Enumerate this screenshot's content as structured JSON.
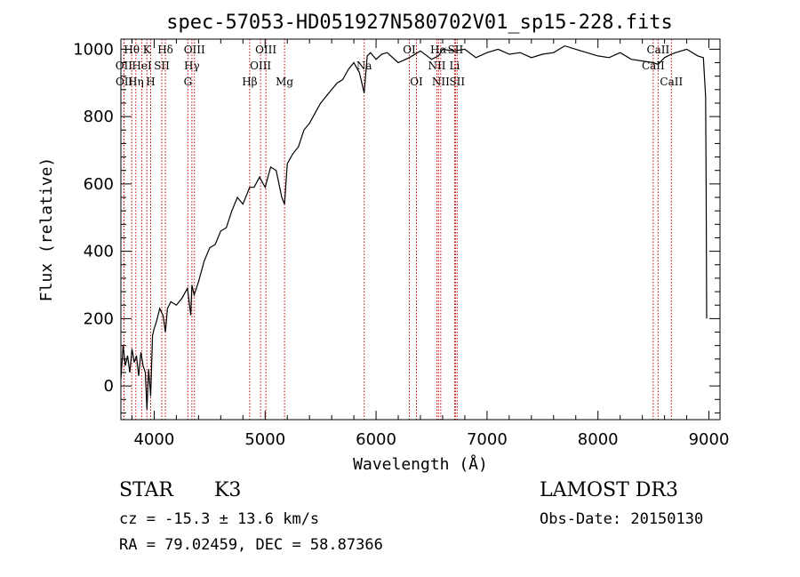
{
  "chart_data": {
    "type": "line",
    "title": "spec-57053-HD051927N580702V01_sp15-228.fits",
    "xlabel": "Wavelength (Å)",
    "ylabel": "Flux (relative)",
    "xlim": [
      3700,
      9100
    ],
    "ylim": [
      -100,
      1030
    ],
    "x_ticks": [
      4000,
      5000,
      6000,
      7000,
      8000,
      9000
    ],
    "y_ticks": [
      0,
      200,
      400,
      600,
      800,
      1000
    ],
    "grid": false,
    "series": [
      {
        "name": "spectrum",
        "x": [
          3700,
          3720,
          3740,
          3760,
          3780,
          3800,
          3820,
          3840,
          3860,
          3880,
          3900,
          3920,
          3935,
          3950,
          3968,
          3985,
          4000,
          4020,
          4050,
          4080,
          4101,
          4120,
          4150,
          4200,
          4250,
          4300,
          4330,
          4340,
          4360,
          4400,
          4450,
          4500,
          4550,
          4600,
          4650,
          4700,
          4750,
          4800,
          4861,
          4900,
          4950,
          5000,
          5050,
          5100,
          5150,
          5175,
          5200,
          5250,
          5300,
          5350,
          5400,
          5450,
          5500,
          5550,
          5600,
          5650,
          5700,
          5750,
          5800,
          5850,
          5893,
          5920,
          5950,
          6000,
          6050,
          6100,
          6200,
          6300,
          6400,
          6500,
          6563,
          6600,
          6700,
          6800,
          6900,
          7000,
          7100,
          7200,
          7300,
          7400,
          7500,
          7600,
          7700,
          7800,
          7900,
          8000,
          8100,
          8200,
          8300,
          8400,
          8498,
          8542,
          8600,
          8662,
          8700,
          8800,
          8900,
          8950,
          8970,
          8975,
          8980
        ],
        "y": [
          20,
          120,
          60,
          90,
          40,
          110,
          70,
          90,
          30,
          100,
          60,
          40,
          -70,
          50,
          -30,
          150,
          170,
          190,
          230,
          210,
          160,
          230,
          250,
          240,
          260,
          290,
          210,
          300,
          270,
          310,
          370,
          410,
          420,
          460,
          470,
          520,
          560,
          540,
          590,
          590,
          620,
          590,
          650,
          640,
          560,
          540,
          660,
          690,
          710,
          760,
          780,
          810,
          840,
          860,
          880,
          900,
          910,
          940,
          960,
          930,
          870,
          980,
          990,
          970,
          985,
          990,
          960,
          975,
          995,
          970,
          980,
          1000,
          995,
          1000,
          975,
          990,
          1000,
          985,
          990,
          975,
          985,
          990,
          1010,
          1000,
          990,
          980,
          975,
          990,
          970,
          965,
          960,
          955,
          975,
          985,
          990,
          1000,
          980,
          975,
          860,
          600,
          200
        ]
      }
    ],
    "line_markers": [
      {
        "label": "Hθ",
        "wavelength": 3798,
        "row": 1
      },
      {
        "label": "OII",
        "wavelength": 3727,
        "row": 2
      },
      {
        "label": "OII",
        "wavelength": 3729,
        "row": 3
      },
      {
        "label": "Hη",
        "wavelength": 3835,
        "row": 3
      },
      {
        "label": "K",
        "wavelength": 3934,
        "row": 1
      },
      {
        "label": "HeI",
        "wavelength": 3889,
        "row": 2
      },
      {
        "label": "H",
        "wavelength": 3968,
        "row": 3
      },
      {
        "label": "Hδ",
        "wavelength": 4101,
        "row": 1
      },
      {
        "label": "SII",
        "wavelength": 4069,
        "row": 2
      },
      {
        "label": "OIII",
        "wavelength": 4363,
        "row": 1
      },
      {
        "label": "Hγ",
        "wavelength": 4340,
        "row": 2
      },
      {
        "label": "G",
        "wavelength": 4304,
        "row": 3
      },
      {
        "label": "Hβ",
        "wavelength": 4861,
        "row": 3
      },
      {
        "label": "OIII",
        "wavelength": 5007,
        "row": 1
      },
      {
        "label": "OIII",
        "wavelength": 4959,
        "row": 2
      },
      {
        "label": "Mg",
        "wavelength": 5175,
        "row": 3
      },
      {
        "label": "Na",
        "wavelength": 5893,
        "row": 2
      },
      {
        "label": "OI",
        "wavelength": 6300,
        "row": 1
      },
      {
        "label": "OI",
        "wavelength": 6364,
        "row": 3
      },
      {
        "label": "Hα",
        "wavelength": 6563,
        "row": 1
      },
      {
        "label": "NII",
        "wavelength": 6548,
        "row": 2
      },
      {
        "label": "NII",
        "wavelength": 6583,
        "row": 3
      },
      {
        "label": "SII",
        "wavelength": 6716,
        "row": 1
      },
      {
        "label": "Li",
        "wavelength": 6708,
        "row": 2
      },
      {
        "label": "SII",
        "wavelength": 6731,
        "row": 3
      },
      {
        "label": "CaII",
        "wavelength": 8542,
        "row": 1
      },
      {
        "label": "CaII",
        "wavelength": 8498,
        "row": 2
      },
      {
        "label": "CaII",
        "wavelength": 8662,
        "row": 3
      }
    ],
    "marker_color": "#cc0000"
  },
  "info": {
    "object_class": "STAR",
    "subclass": "K3",
    "survey": "LAMOST DR3",
    "cz": "cz = -15.3 ± 13.6 km/s",
    "obs_date": "Obs-Date: 20150130",
    "coords": "RA =  79.02459, DEC =  58.87366"
  }
}
